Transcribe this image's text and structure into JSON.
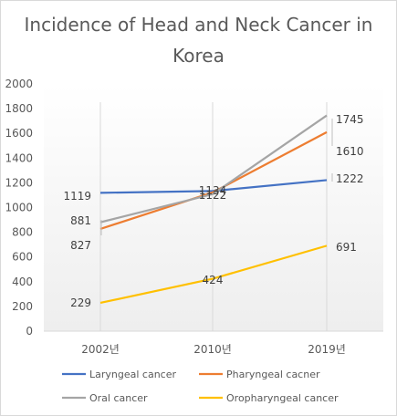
{
  "chart_data": {
    "type": "line",
    "title_line1": "Incidence of Head and Neck Cancer in",
    "title_line2": "Korea",
    "categories": [
      "2002년",
      "2010년",
      "2019년"
    ],
    "ylim": [
      0,
      2000
    ],
    "yticks": [
      "0",
      "200",
      "400",
      "600",
      "800",
      "1000",
      "1200",
      "1400",
      "1600",
      "1800",
      "2000"
    ],
    "grid": false,
    "legend_position": "bottom",
    "series": [
      {
        "name": "Laryngeal cancer",
        "color": "#4472c4",
        "values": [
          1119,
          1134,
          1222
        ],
        "labels": [
          "1119",
          "1134",
          "1222"
        ]
      },
      {
        "name": "Pharyngeal cacner",
        "color": "#ed7d31",
        "values": [
          827,
          1122,
          1610
        ],
        "labels": [
          "827",
          "1122",
          "1610"
        ]
      },
      {
        "name": "Oral cancer",
        "color": "#a5a5a5",
        "values": [
          881,
          1108,
          1745
        ],
        "labels": [
          "881",
          "",
          "1745"
        ]
      },
      {
        "name": "Oropharyngeal cancer",
        "color": "#ffc000",
        "values": [
          229,
          424,
          691
        ],
        "labels": [
          "229",
          "424",
          "691"
        ]
      }
    ]
  }
}
